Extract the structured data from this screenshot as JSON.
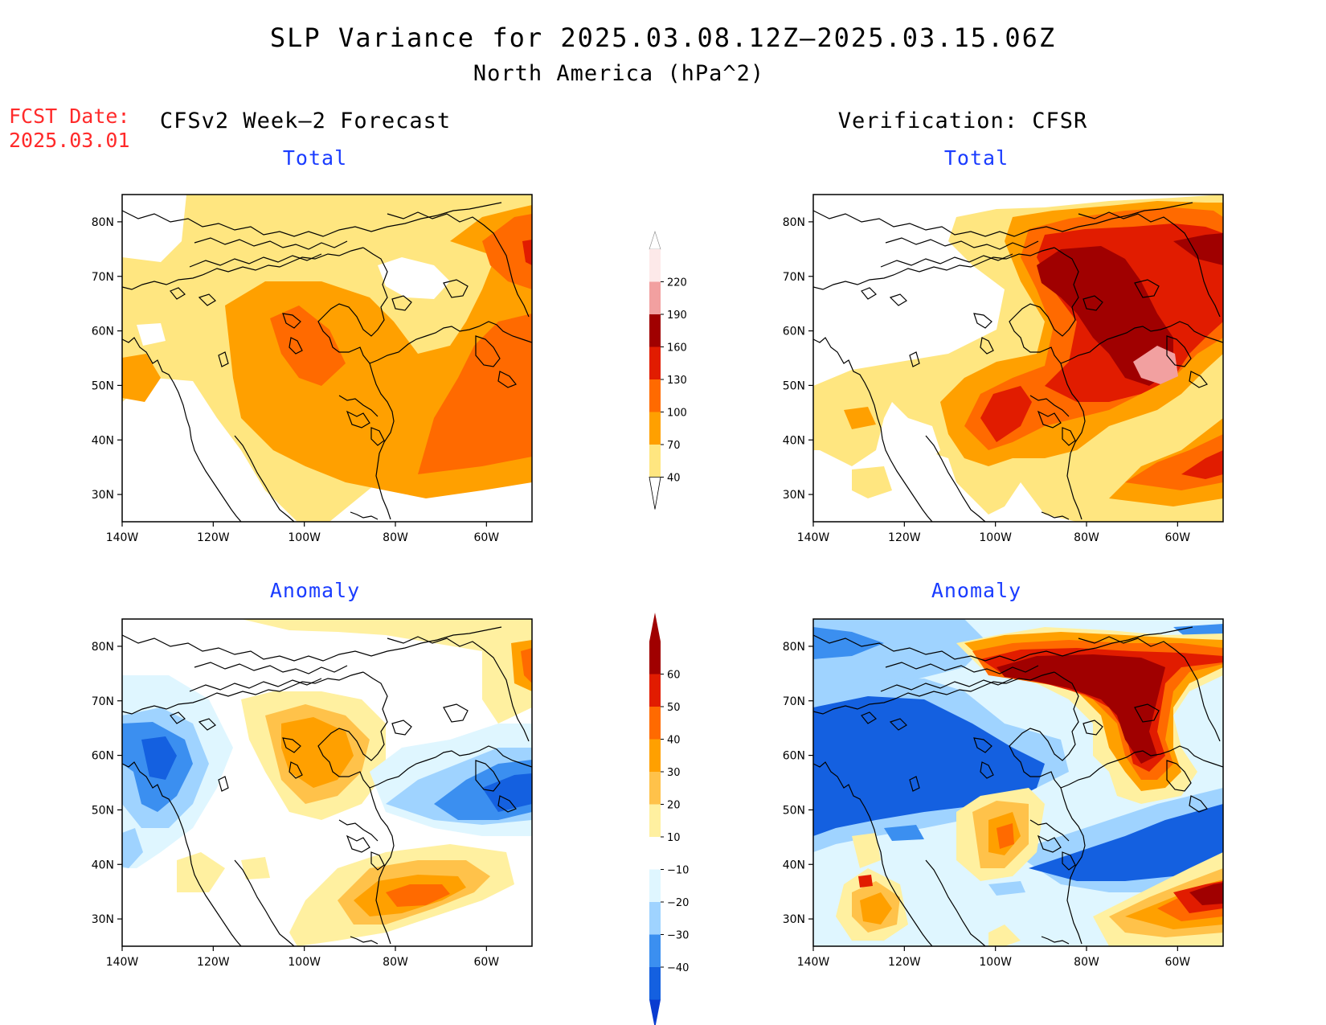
{
  "header": {
    "title": "SLP Variance for 2025.03.08.12Z–2025.03.15.06Z",
    "subtitle": "North America (hPa^2)",
    "fcst_label": "FCST Date:",
    "fcst_date": "2025.03.01",
    "left_column_title": "CFSv2 Week–2 Forecast",
    "right_column_title": "Verification: CFSR"
  },
  "panels": {
    "top_left_title": "Total",
    "top_right_title": "Total",
    "bottom_left_title": "Anomaly",
    "bottom_right_title": "Anomaly"
  },
  "axes": {
    "lon_ticks": [
      "140W",
      "120W",
      "100W",
      "80W",
      "60W"
    ],
    "lon_values": [
      -140,
      -120,
      -100,
      -80,
      -60
    ],
    "lat_ticks": [
      "80N",
      "70N",
      "60N",
      "50N",
      "40N",
      "30N"
    ],
    "lat_values": [
      80,
      70,
      60,
      50,
      40,
      30
    ],
    "lon_range": [
      -140,
      -50
    ],
    "lat_range": [
      25,
      85
    ]
  },
  "colorbar_total": {
    "labels": [
      "220",
      "190",
      "160",
      "130",
      "100",
      "70",
      "40"
    ],
    "colors": [
      "#fde9e9",
      "#f2a0a0",
      "#a00000",
      "#e11c00",
      "#ff6a00",
      "#ffa000",
      "#ffe680"
    ]
  },
  "colorbar_anomaly": {
    "labels": [
      "60",
      "50",
      "40",
      "30",
      "20",
      "10",
      "−10",
      "−20",
      "−30",
      "−40"
    ],
    "colors": [
      "#a00000",
      "#e11c00",
      "#ff6a00",
      "#ffa000",
      "#ffc24a",
      "#fff0a0",
      "#ffffff",
      "#dff6ff",
      "#9fd3ff",
      "#3b8ff0",
      "#1460e0",
      "#0a3cd0"
    ]
  },
  "palette": {
    "title_blue": "#1a3cff",
    "fcst_red": "#ff2a2a"
  }
}
